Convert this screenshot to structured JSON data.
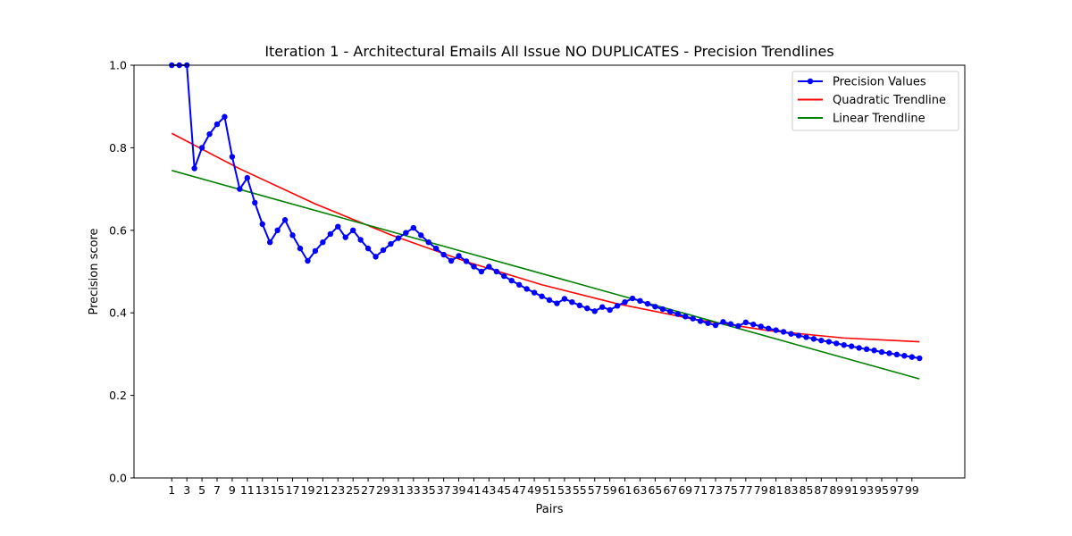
{
  "chart_data": {
    "type": "line",
    "title": "Iteration 1 - Architectural Emails All Issue NO DUPLICATES - Precision Trendlines",
    "xlabel": "Pairs",
    "ylabel": "Precision score",
    "ylim": [
      0,
      1
    ],
    "yticks": [
      "0.0",
      "0.2",
      "0.4",
      "0.6",
      "0.8",
      "1.0"
    ],
    "xlim": [
      -4,
      106
    ],
    "xticks": [
      1,
      3,
      5,
      7,
      9,
      11,
      13,
      15,
      17,
      19,
      21,
      23,
      25,
      27,
      29,
      31,
      33,
      35,
      37,
      39,
      41,
      43,
      45,
      47,
      49,
      51,
      53,
      55,
      57,
      59,
      61,
      63,
      65,
      67,
      69,
      71,
      73,
      75,
      77,
      79,
      81,
      83,
      85,
      87,
      89,
      91,
      93,
      95,
      97,
      99
    ],
    "grid": false,
    "legend": "top-right",
    "series": [
      {
        "name": "Precision Values",
        "color": "#0000ff",
        "marker": "circle",
        "x": [
          1,
          2,
          3,
          4,
          5,
          6,
          7,
          8,
          9,
          10,
          11,
          12,
          13,
          14,
          15,
          16,
          17,
          18,
          19,
          20,
          21,
          22,
          23,
          24,
          25,
          26,
          27,
          28,
          29,
          30,
          31,
          32,
          33,
          34,
          35,
          36,
          37,
          38,
          39,
          40,
          41,
          42,
          43,
          44,
          45,
          46,
          47,
          48,
          49,
          50,
          51,
          52,
          53,
          54,
          55,
          56,
          57,
          58,
          59,
          60,
          61,
          62,
          63,
          64,
          65,
          66,
          67,
          68,
          69,
          70,
          71,
          72,
          73,
          74,
          75,
          76,
          77,
          78,
          79,
          80,
          81,
          82,
          83,
          84,
          85,
          86,
          87,
          88,
          89,
          90,
          91,
          92,
          93,
          94,
          95,
          96,
          97,
          98,
          99,
          100
        ],
        "values": [
          1.0,
          1.0,
          1.0,
          0.75,
          0.8,
          0.833,
          0.857,
          0.875,
          0.778,
          0.7,
          0.727,
          0.667,
          0.615,
          0.571,
          0.6,
          0.625,
          0.588,
          0.556,
          0.526,
          0.55,
          0.571,
          0.591,
          0.609,
          0.583,
          0.6,
          0.577,
          0.556,
          0.536,
          0.552,
          0.567,
          0.581,
          0.594,
          0.606,
          0.588,
          0.571,
          0.556,
          0.541,
          0.526,
          0.538,
          0.525,
          0.512,
          0.5,
          0.512,
          0.5,
          0.489,
          0.478,
          0.468,
          0.458,
          0.449,
          0.44,
          0.431,
          0.423,
          0.434,
          0.426,
          0.418,
          0.411,
          0.404,
          0.414,
          0.407,
          0.417,
          0.426,
          0.435,
          0.429,
          0.422,
          0.415,
          0.409,
          0.403,
          0.397,
          0.391,
          0.386,
          0.38,
          0.375,
          0.37,
          0.378,
          0.373,
          0.368,
          0.377,
          0.372,
          0.367,
          0.362,
          0.358,
          0.354,
          0.349,
          0.345,
          0.341,
          0.337,
          0.333,
          0.33,
          0.326,
          0.322,
          0.319,
          0.315,
          0.312,
          0.309,
          0.305,
          0.302,
          0.299,
          0.296,
          0.293,
          0.29
        ]
      },
      {
        "name": "Quadratic Trendline",
        "color": "#ff0000",
        "marker": "none",
        "x": [
          1,
          10,
          20,
          30,
          40,
          50,
          60,
          70,
          80,
          90,
          100
        ],
        "values": [
          0.835,
          0.749,
          0.664,
          0.589,
          0.524,
          0.468,
          0.422,
          0.385,
          0.357,
          0.339,
          0.33
        ]
      },
      {
        "name": "Linear Trendline",
        "color": "#008000",
        "marker": "none",
        "x": [
          1,
          100
        ],
        "values": [
          0.745,
          0.24
        ]
      }
    ]
  }
}
